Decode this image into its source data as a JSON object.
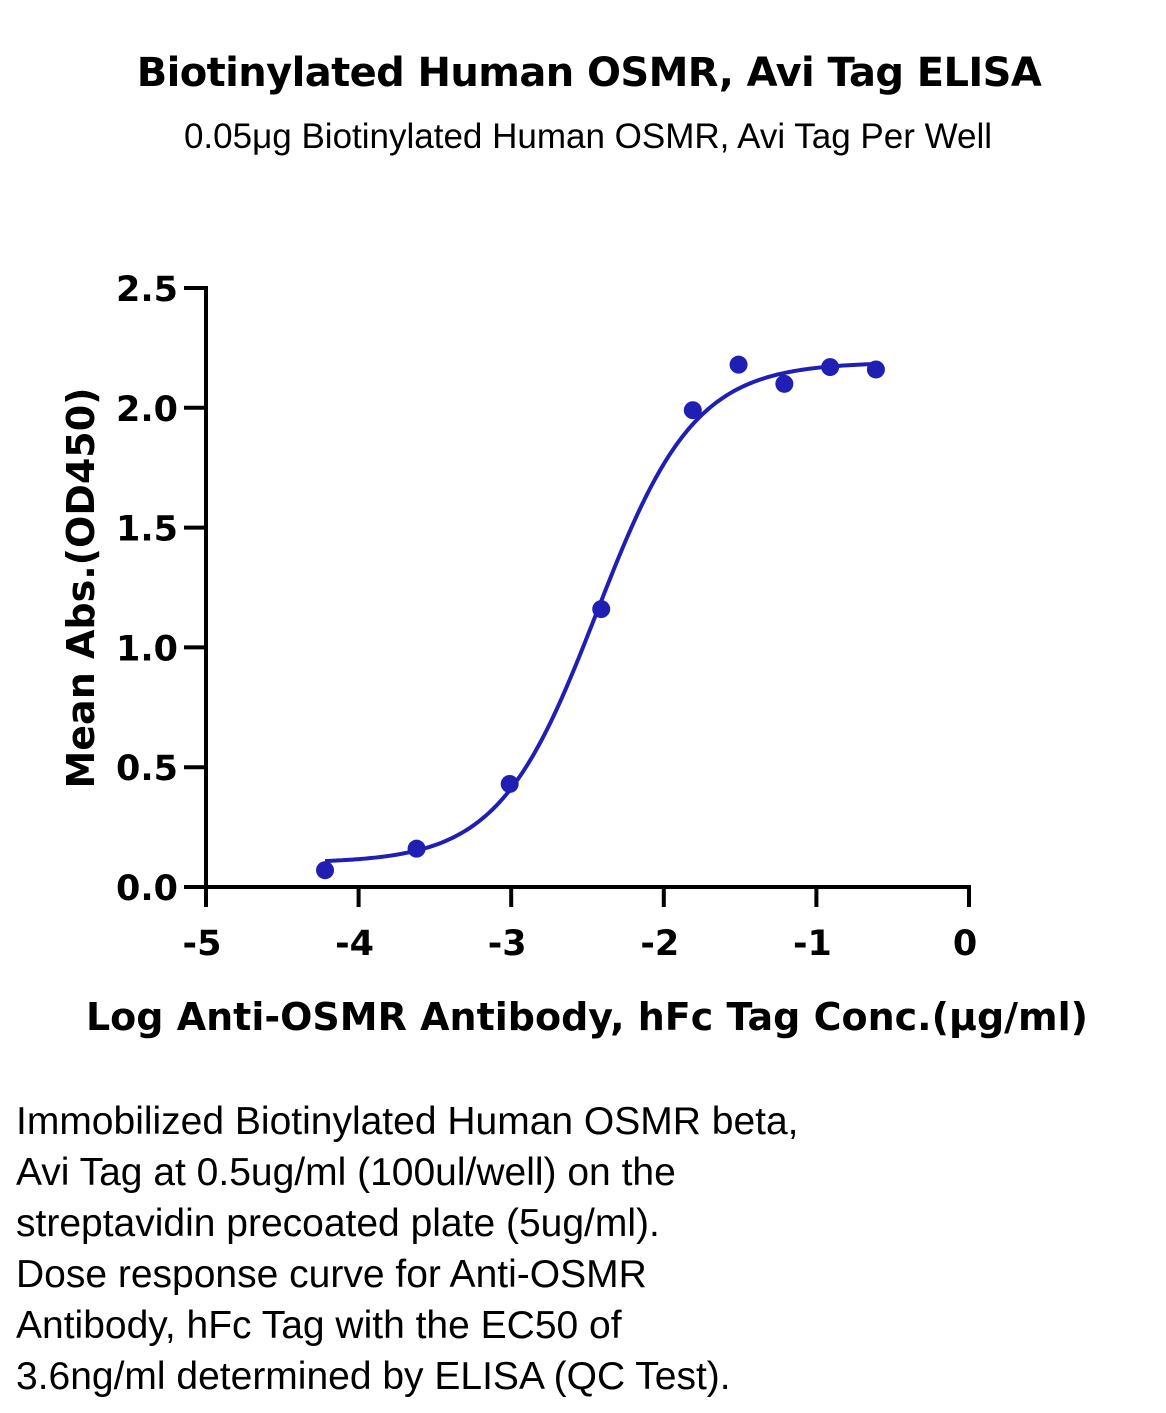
{
  "chart_data": {
    "type": "scatter",
    "title": "Biotinylated Human OSMR, Avi Tag ELISA",
    "subtitle": "0.05μg Biotinylated Human OSMR, Avi Tag Per Well",
    "xlabel": "Log Anti-OSMR Antibody, hFc Tag Conc.(μg/ml)",
    "ylabel": "Mean Abs.(OD450)",
    "xlim": [
      -5,
      0
    ],
    "ylim": [
      0,
      2.5
    ],
    "x_ticks": [
      "-5",
      "-4",
      "-3",
      "-2",
      "-1",
      "0"
    ],
    "y_ticks": [
      "0.0",
      "0.5",
      "1.0",
      "1.5",
      "2.0",
      "2.5"
    ],
    "grid": false,
    "legend": "none",
    "color": "#1f1fb4",
    "series": [
      {
        "points": [
          {
            "x": -4.22,
            "y": 0.07
          },
          {
            "x": -3.62,
            "y": 0.16
          },
          {
            "x": -3.01,
            "y": 0.43
          },
          {
            "x": -2.41,
            "y": 1.16
          },
          {
            "x": -1.81,
            "y": 1.99
          },
          {
            "x": -1.51,
            "y": 2.18
          },
          {
            "x": -1.21,
            "y": 2.1
          },
          {
            "x": -0.91,
            "y": 2.17
          },
          {
            "x": -0.61,
            "y": 2.16
          }
        ],
        "fit": {
          "model": "4PL",
          "bottom": 0.1,
          "top": 2.19,
          "log_ec50": -2.44,
          "hill_slope": 1.35,
          "x_range": [
            -4.22,
            -0.61
          ]
        }
      }
    ]
  },
  "caption_lines": [
    "Immobilized Biotinylated Human OSMR beta,",
    "Avi Tag at 0.5ug/ml (100ul/well) on the",
    "streptavidin precoated plate (5ug/ml).",
    "Dose response curve for Anti-OSMR",
    "Antibody, hFc Tag with the EC50 of",
    "3.6ng/ml determined by ELISA (QC Test)."
  ]
}
